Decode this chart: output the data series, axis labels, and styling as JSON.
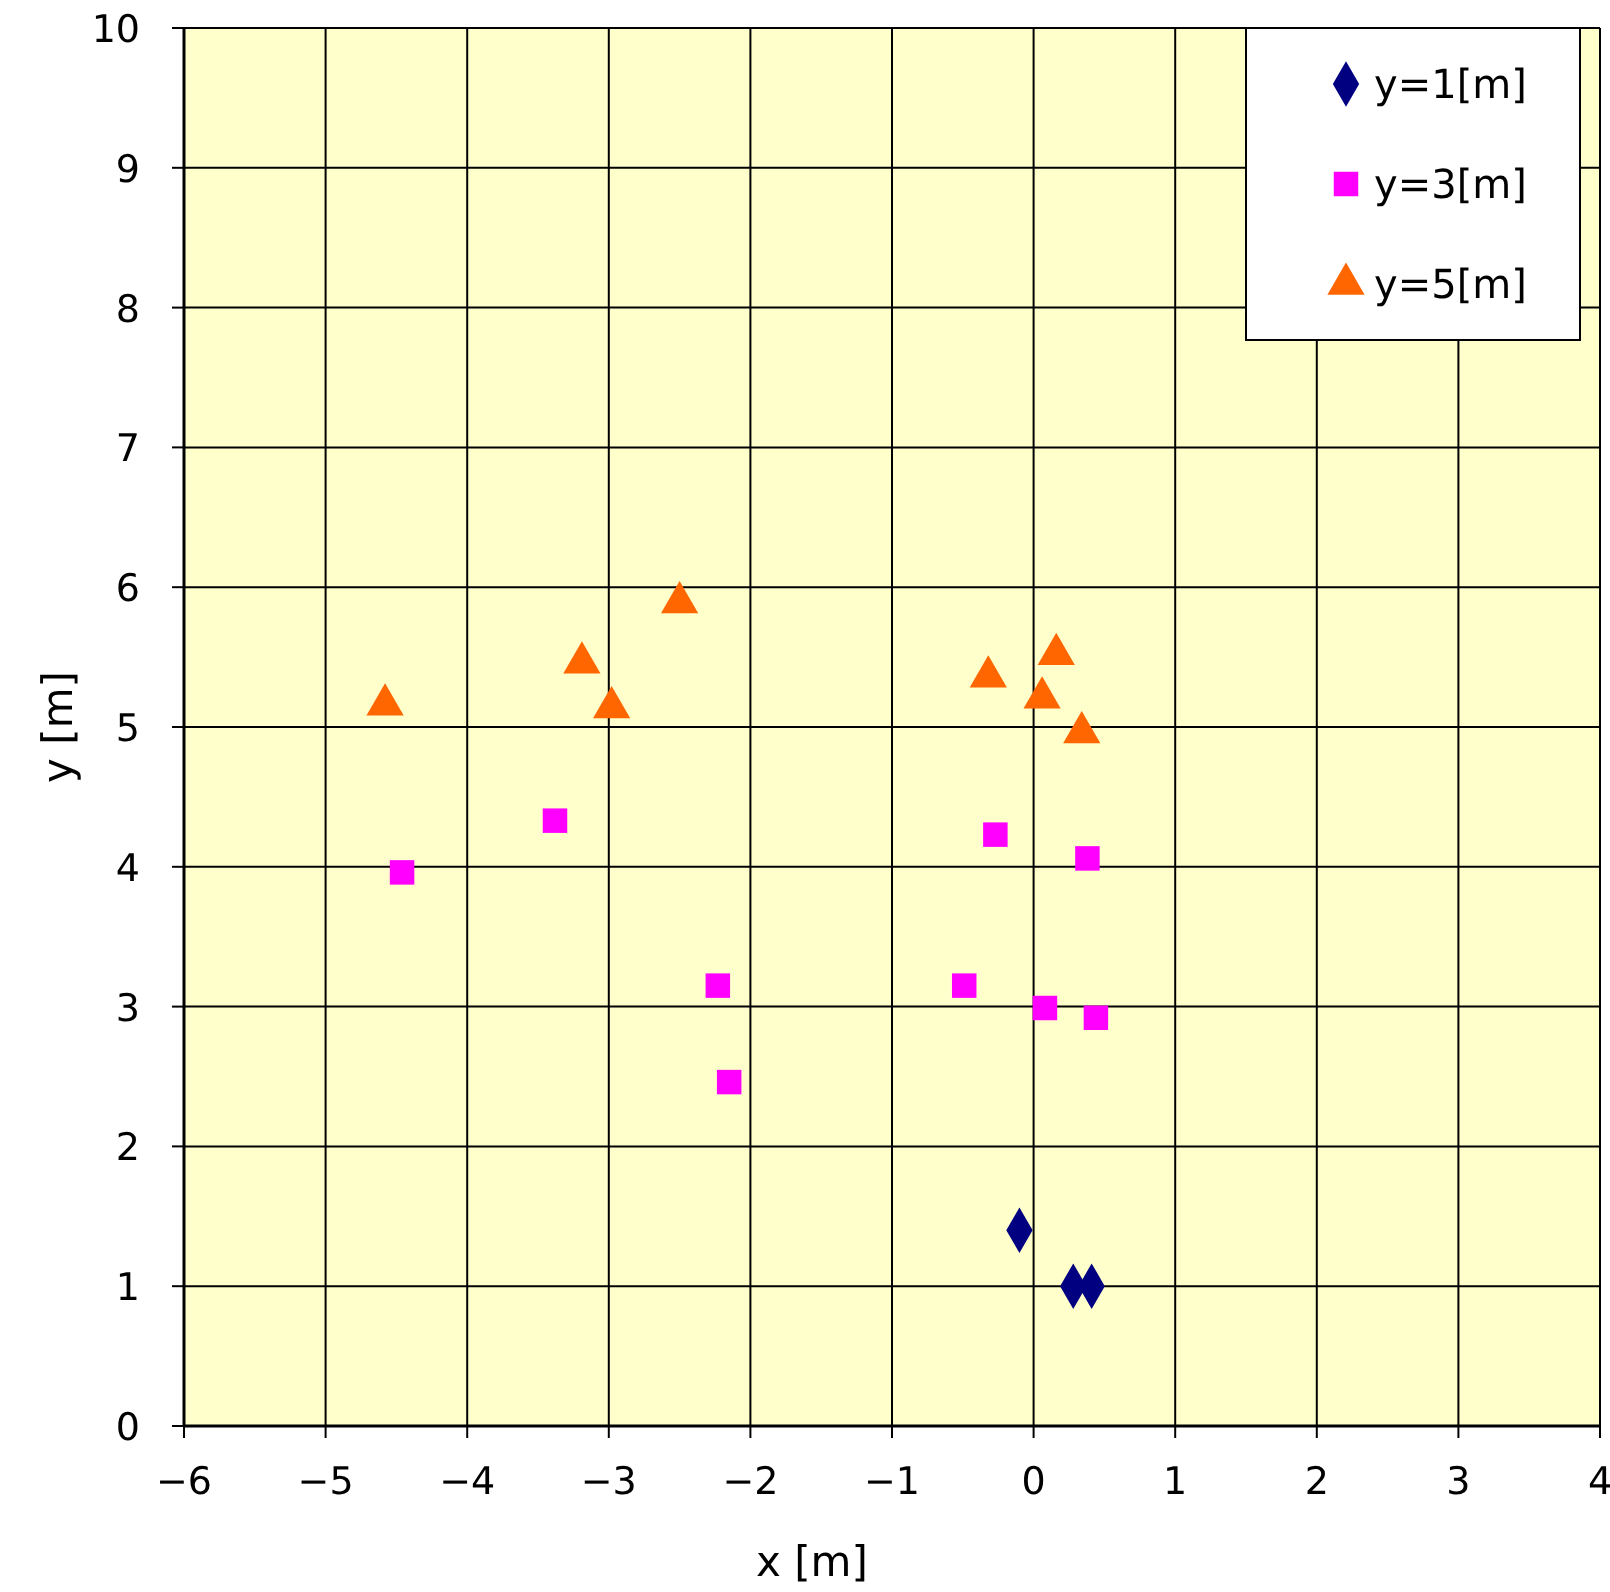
{
  "chart_data": {
    "type": "scatter",
    "xlabel": "x [m]",
    "ylabel": "y [m]",
    "xlim": [
      -6,
      4
    ],
    "ylim": [
      0,
      10
    ],
    "xticks": [
      -6,
      -5,
      -4,
      -3,
      -2,
      -1,
      0,
      1,
      2,
      3,
      4
    ],
    "yticks": [
      0,
      1,
      2,
      3,
      4,
      5,
      6,
      7,
      8,
      9,
      10
    ],
    "grid": true,
    "legend": "top right",
    "series": [
      {
        "name": "y=1[m]",
        "color": "#000080",
        "marker": "diamond",
        "x": [
          -0.1,
          0.28,
          0.41
        ],
        "values": [
          1.4,
          1.0,
          1.0
        ]
      },
      {
        "name": "y=3[m]",
        "color": "#ff00ff",
        "marker": "square",
        "x": [
          -4.46,
          -3.38,
          -2.23,
          -2.15,
          -0.49,
          -0.27,
          0.08,
          0.38,
          0.44
        ],
        "values": [
          3.96,
          4.33,
          3.15,
          2.46,
          3.15,
          4.23,
          2.99,
          4.06,
          2.92
        ]
      },
      {
        "name": "y=5[m]",
        "color": "#ff6600",
        "marker": "triangle",
        "x": [
          -4.58,
          -3.19,
          -2.98,
          -2.5,
          -0.32,
          0.16,
          0.06,
          0.34
        ],
        "values": [
          5.16,
          5.46,
          5.14,
          5.89,
          5.36,
          5.52,
          5.21,
          4.96
        ]
      }
    ]
  }
}
